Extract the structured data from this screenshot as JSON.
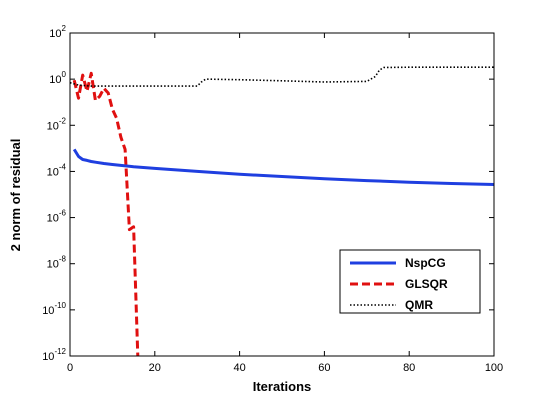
{
  "chart_data": {
    "type": "line",
    "title": "",
    "xlabel": "Iterations",
    "ylabel": "2 norm of residual",
    "xlim": [
      0,
      100
    ],
    "ylim": [
      1e-12,
      100
    ],
    "yscale": "log",
    "x_ticks": [
      0,
      20,
      40,
      60,
      80,
      100
    ],
    "x_tick_labels": [
      "0",
      "20",
      "40",
      "60",
      "80",
      "100"
    ],
    "y_ticks": [
      {
        "value": 1e-12,
        "base": "10",
        "exp": "-12"
      },
      {
        "value": 1e-10,
        "base": "10",
        "exp": "-10"
      },
      {
        "value": 1e-08,
        "base": "10",
        "exp": "-8"
      },
      {
        "value": 1e-06,
        "base": "10",
        "exp": "-6"
      },
      {
        "value": 0.0001,
        "base": "10",
        "exp": "-4"
      },
      {
        "value": 0.01,
        "base": "10",
        "exp": "-2"
      },
      {
        "value": 1,
        "base": "10",
        "exp": "0"
      },
      {
        "value": 100,
        "base": "10",
        "exp": "2"
      }
    ],
    "grid": false,
    "legend_position": "bottom-right",
    "series": [
      {
        "name": "NspCG",
        "color": "#1f3fe0",
        "style": "solid",
        "x": [
          1,
          2,
          3,
          4,
          5,
          6,
          8,
          10,
          15,
          20,
          30,
          40,
          50,
          60,
          70,
          80,
          90,
          100
        ],
        "y": [
          0.0009,
          0.00045,
          0.00033,
          0.0003,
          0.00027,
          0.00025,
          0.00022,
          0.0002,
          0.00016,
          0.000135,
          0.0001,
          7.5e-05,
          6e-05,
          4.8e-05,
          4e-05,
          3.4e-05,
          3e-05,
          2.7e-05
        ]
      },
      {
        "name": "GLSQR",
        "color": "#e01010",
        "style": "dashed",
        "x": [
          1,
          2,
          3,
          4,
          5,
          6,
          7,
          8,
          9,
          10,
          11,
          12,
          13,
          14,
          15,
          16
        ],
        "y": [
          0.9,
          0.15,
          1.5,
          0.3,
          1.8,
          0.12,
          0.18,
          0.4,
          0.25,
          0.05,
          0.02,
          0.003,
          0.0009,
          3e-07,
          4e-07,
          1e-12
        ]
      },
      {
        "name": "QMR",
        "color": "#000000",
        "style": "dotted",
        "x": [
          0,
          2,
          5,
          10,
          20,
          30,
          31,
          32,
          40,
          50,
          60,
          70,
          72,
          73,
          74,
          80,
          90,
          100
        ],
        "y": [
          0.7,
          0.55,
          0.5,
          0.5,
          0.5,
          0.5,
          0.75,
          1.0,
          0.95,
          0.85,
          0.75,
          0.8,
          1.3,
          2.5,
          3.2,
          3.3,
          3.3,
          3.3
        ]
      }
    ]
  }
}
